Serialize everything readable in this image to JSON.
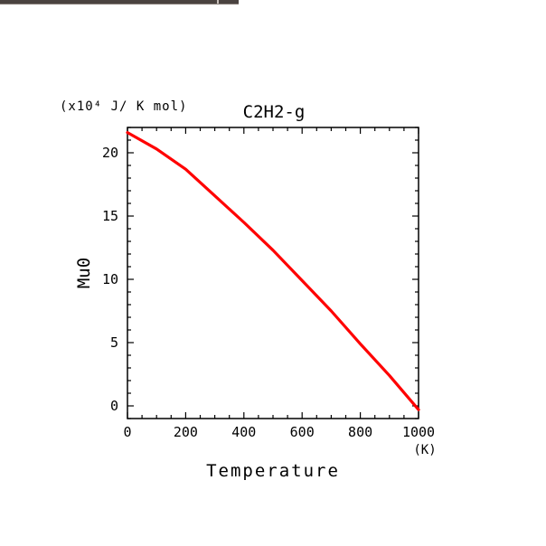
{
  "chart_data": {
    "type": "line",
    "title": "C2H2-g",
    "unit_label": "(x10⁴ J/ K mol)",
    "xlabel": "Temperature",
    "xunit": "(K)",
    "ylabel": "Mu0",
    "xlim": [
      0,
      1000
    ],
    "ylim": [
      -1,
      22
    ],
    "x_ticks": [
      0,
      200,
      400,
      600,
      800,
      1000
    ],
    "x_tick_labels": [
      "0",
      "200",
      "400",
      "600",
      "800",
      "1000"
    ],
    "y_ticks": [
      0,
      5,
      10,
      15,
      20
    ],
    "y_tick_labels": [
      "0",
      "5",
      "10",
      "15",
      "20"
    ],
    "grid": false,
    "series": [
      {
        "color": "#ff0000",
        "x": [
          0,
          100,
          200,
          300,
          400,
          500,
          600,
          700,
          800,
          900,
          1000
        ],
        "y": [
          21.6,
          20.3,
          18.7,
          16.6,
          14.5,
          12.3,
          9.9,
          7.5,
          4.9,
          2.4,
          -0.3
        ]
      }
    ]
  },
  "colors": {
    "axis": "#000000",
    "series": "#ff0000",
    "background": "#ffffff"
  }
}
